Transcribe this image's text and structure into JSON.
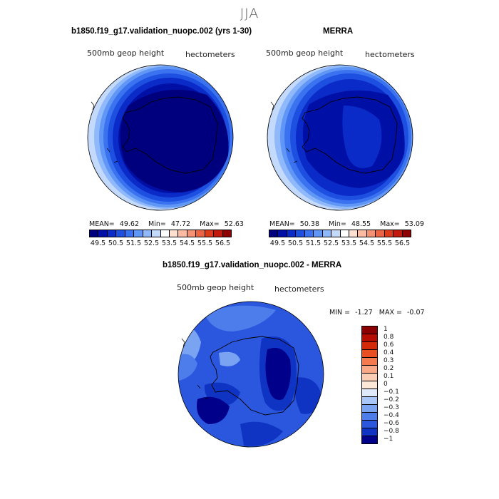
{
  "figure": {
    "season": "JJA"
  },
  "panel1": {
    "title": "b1850.f19_g17.validation_nuopc.002 (yrs 1-30)",
    "variable": "500mb geop height",
    "units": "hectometers",
    "mean_label": "MEAN=",
    "mean": "49.62",
    "min_label": "Min=",
    "min": "47.72",
    "max_label": "Max=",
    "max": "52.63"
  },
  "panel2": {
    "title": "MERRA",
    "variable": "500mb geop height",
    "units": "hectometers",
    "mean_label": "MEAN=",
    "mean": "50.38",
    "min_label": "Min=",
    "min": "48.55",
    "max_label": "Max=",
    "max": "53.09"
  },
  "panel3": {
    "title": "b1850.f19_g17.validation_nuopc.002 - MERRA",
    "variable": "500mb geop height",
    "units": "hectometers",
    "min_label": "MIN =",
    "min": "-1.27",
    "max_label": "MAX =",
    "max": "-0.07"
  },
  "abs_colorbar": {
    "colors": [
      "#00007f",
      "#0010a6",
      "#0a2bc8",
      "#1d4fe0",
      "#3a72ef",
      "#6097f6",
      "#8fb9fb",
      "#c3dafd",
      "#ffffff",
      "#fde0d0",
      "#fbbca3",
      "#f59274",
      "#ec6443",
      "#dc3a1a",
      "#c11a0c",
      "#8f0000"
    ],
    "ticks": [
      "49.5",
      "50.5",
      "51.5",
      "52.5",
      "53.5",
      "54.5",
      "55.5",
      "56.5"
    ]
  },
  "diff_colorbar": {
    "colors": [
      "#8b0000",
      "#b50e00",
      "#d42a0a",
      "#ea4f23",
      "#f57b4f",
      "#f9a987",
      "#fbcdb4",
      "#fde8d8",
      "#dfe9fb",
      "#a9c6f8",
      "#7aa3f2",
      "#4d7deb",
      "#2a57de",
      "#0f34c4",
      "#00008b"
    ],
    "ticks": [
      "1",
      "0.8",
      "0.6",
      "0.4",
      "0.3",
      "0.2",
      "0.1",
      "0",
      "−0.1",
      "−0.2",
      "−0.3",
      "−0.4",
      "−0.6",
      "−0.8",
      "−1"
    ]
  }
}
